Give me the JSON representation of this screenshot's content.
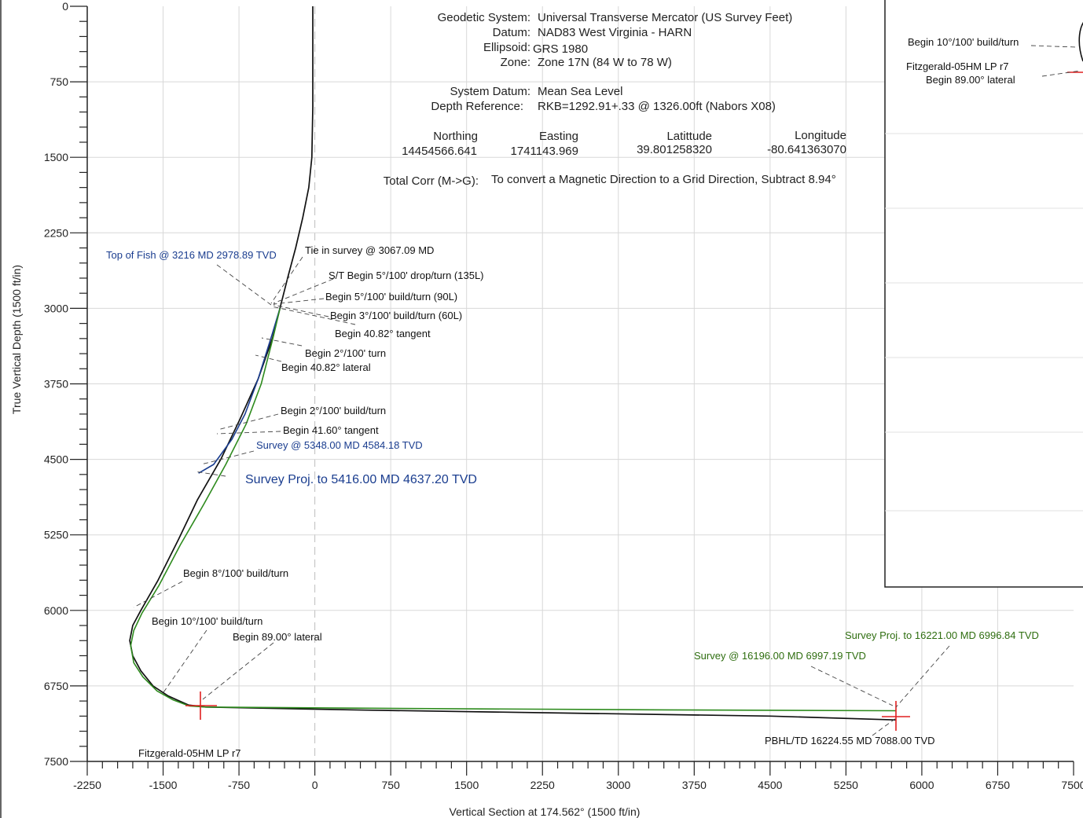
{
  "chart_data": {
    "type": "line",
    "title": "",
    "xlabel": "Vertical Section at 174.562° (1500 ft/in)",
    "ylabel": "True Vertical Depth (1500 ft/in)",
    "xlim": [
      -2250,
      7500
    ],
    "ylim": [
      7500,
      0
    ],
    "x_ticks": [
      -2250,
      -1500,
      -750,
      0,
      750,
      1500,
      2250,
      3000,
      3750,
      4500,
      5250,
      6000,
      6750,
      7500
    ],
    "y_ticks": [
      0,
      750,
      1500,
      2250,
      3000,
      3750,
      4500,
      5250,
      6000,
      6750,
      7500
    ],
    "grid": true,
    "series": [
      {
        "color": "#111111",
        "x": [
          -20,
          -20,
          -20,
          -30,
          -60,
          -120,
          -190,
          -270,
          -345,
          -420,
          -560,
          -740,
          -930,
          -1160,
          -1350,
          -1550,
          -1720,
          -1800,
          -1830,
          -1800,
          -1720,
          -1600,
          -1450,
          -1250,
          -1080,
          500,
          2500,
          4500,
          5740
        ],
        "y": [
          0,
          500,
          1000,
          1500,
          1800,
          2100,
          2400,
          2700,
          3000,
          3300,
          3700,
          4100,
          4500,
          4900,
          5300,
          5700,
          6000,
          6150,
          6300,
          6450,
          6600,
          6750,
          6850,
          6940,
          6960,
          6990,
          7020,
          7050,
          7088
        ]
      },
      {
        "color": "#1a3d8f",
        "x": [
          -345,
          -420,
          -560,
          -690,
          -820,
          -1000,
          -1150
        ],
        "y": [
          3000,
          3250,
          3700,
          4050,
          4300,
          4550,
          4637
        ]
      },
      {
        "color": "#2e8b1e",
        "x": [
          -345,
          -410,
          -530,
          -680,
          -880,
          -1100,
          -1330,
          -1540,
          -1710,
          -1790,
          -1820,
          -1790,
          -1700,
          -1560,
          -1400,
          -1240,
          -1080,
          1000,
          3500,
          5740
        ],
        "y": [
          3000,
          3280,
          3750,
          4150,
          4550,
          4950,
          5350,
          5750,
          6030,
          6200,
          6350,
          6520,
          6660,
          6800,
          6890,
          6950,
          6960,
          6975,
          6988,
          6997
        ]
      }
    ],
    "annotations": [
      {
        "text": "Top of Fish @ 3216 MD 2978.89 TVD",
        "style": "blue"
      },
      {
        "text": "Tie in survey @ 3067.09 MD",
        "style": "black"
      },
      {
        "text": "S/T Begin 5°/100' drop/turn (135L)",
        "style": "black"
      },
      {
        "text": "Begin 5°/100' build/turn (90L)",
        "style": "black"
      },
      {
        "text": "Begin 3°/100' build/turn (60L)",
        "style": "black"
      },
      {
        "text": "Begin 40.82° tangent",
        "style": "black"
      },
      {
        "text": "Begin 2°/100' turn",
        "style": "black"
      },
      {
        "text": "Begin 40.82° lateral",
        "style": "black"
      },
      {
        "text": "Begin 2°/100' build/turn",
        "style": "black"
      },
      {
        "text": "Begin 41.60° tangent",
        "style": "black"
      },
      {
        "text": "Survey @ 5348.00 MD 4584.18 TVD",
        "style": "blue"
      },
      {
        "text": "Survey Proj. to 5416.00 MD 4637.20 TVD",
        "style": "blue-big"
      },
      {
        "text": "Begin 8°/100' build/turn",
        "style": "black"
      },
      {
        "text": "Begin 10°/100' build/turn",
        "style": "black"
      },
      {
        "text": "Begin 89.00° lateral",
        "style": "black"
      },
      {
        "text": "Fitzgerald-05HM LP r7",
        "style": "black"
      },
      {
        "text": "Survey Proj. to 16221.00 MD 6996.84 TVD",
        "style": "green"
      },
      {
        "text": "Survey @ 16196.00 MD 6997.19 TVD",
        "style": "green"
      },
      {
        "text": "PBHL/TD 16224.55 MD 7088.00 TVD",
        "style": "black"
      }
    ]
  },
  "info": {
    "geodetic_label": "Geodetic System:",
    "geodetic_value": "Universal Transverse Mercator (US Survey Feet)",
    "datum_label": "Datum:",
    "datum_value": "NAD83 West Virginia - HARN",
    "ellipsoid_label": "Ellipsoid:",
    "ellipsoid_value": "GRS 1980",
    "zone_label": "Zone:",
    "zone_value": "Zone 17N (84 W to 78 W)",
    "system_datum_label": "System Datum:",
    "system_datum_value": "Mean Sea Level",
    "depth_ref_label": "Depth Reference:",
    "depth_ref_value": "RKB=1292.91+.33 @ 1326.00ft (Nabors X08)",
    "northing_label": "Northing",
    "northing_value": "14454566.641",
    "easting_label": "Easting",
    "easting_value": "1741143.969",
    "latitude_label": "Latittude",
    "latitude_value": "39.801258320",
    "longitude_label": "Longitude",
    "longitude_value": "-80.641363070",
    "total_corr_label": "Total Corr (M->G):",
    "total_corr_value": "To convert a Magnetic Direction to a Grid Direction, Subtract 8.94°"
  },
  "inset": {
    "label1": "Begin 10°/100' build/turn",
    "label2": "Fitzgerald-05HM LP r7",
    "label3": "Begin 89.00° lateral"
  },
  "colors": {
    "wellpath_plan": "#111111",
    "wellpath_actual_upper": "#1a3d8f",
    "wellpath_actual": "#2e8b1e",
    "target_marker": "#e02020",
    "grid": "#d8d8d8"
  }
}
